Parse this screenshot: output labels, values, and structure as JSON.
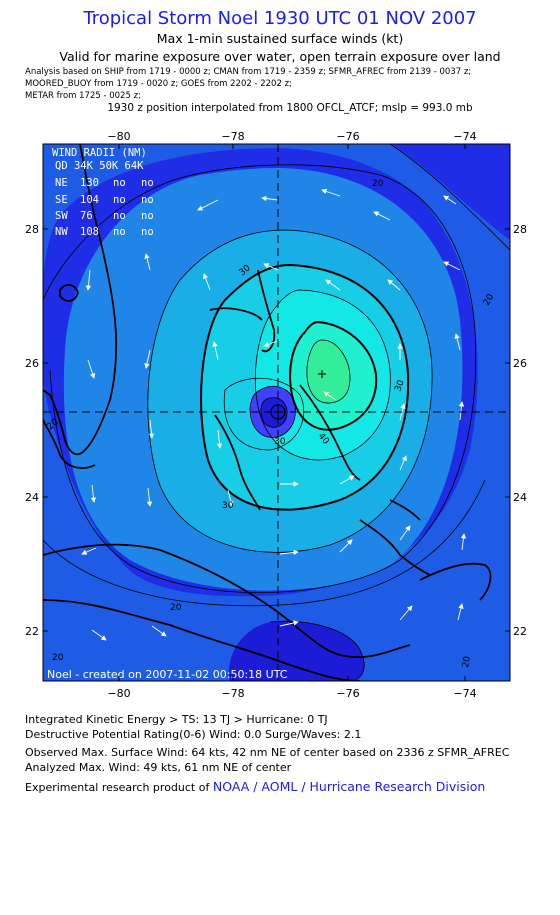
{
  "header": {
    "title": "Tropical Storm Noel 1930 UTC 01 NOV 2007",
    "subtitle1": "Max 1-min sustained surface winds (kt)",
    "subtitle2": "Valid for marine exposure over water, open terrain exposure over land",
    "sources": [
      "Analysis based on  SHIP from 1719 - 0000 z;  CMAN from 1719 - 2359 z;  SFMR_AFREC from 2139 - 0037 z;",
      "MOORED_BUOY from 1719 - 0020 z;  GOES from 2202 - 2202 z;",
      "METAR from 1725 - 0025 z;"
    ],
    "interpolation": "1930 z position interpolated from 1800 OFCL_ATCF; mslp = 993.0 mb"
  },
  "map": {
    "lon_ticks": [
      "−80",
      "−78",
      "−76",
      "−74"
    ],
    "lat_ticks": [
      "28",
      "26",
      "24",
      "22"
    ],
    "lon_range": [
      -81.3,
      -73.3
    ],
    "lat_range": [
      21.3,
      29.3
    ],
    "center": {
      "lon": -77.1,
      "lat": 25.25
    },
    "max_wind": {
      "lon": -76.5,
      "lat": 25.85
    },
    "contour_labels": [
      "20",
      "20",
      "20",
      "20",
      "30",
      "30",
      "30",
      "30",
      "40",
      "20",
      "20"
    ],
    "wind_radii": {
      "title": "WIND RADII (NM)",
      "header": "QD  34K  50K  64K",
      "rows": [
        {
          "qd": "NE",
          "r34": "130",
          "r50": "no",
          "r64": "no"
        },
        {
          "qd": "SE",
          "r34": "104",
          "r50": "no",
          "r64": "no"
        },
        {
          "qd": "SW",
          "r34": "76",
          "r50": "no",
          "r64": "no"
        },
        {
          "qd": "NW",
          "r34": "108",
          "r50": "no",
          "r64": "no"
        }
      ]
    },
    "created": "Noel - created on 2007-11-02 00:50:18 UTC",
    "colors": {
      "outer": "#1f2de6",
      "c15": "#1f5ce6",
      "c20": "#1f86e8",
      "c25": "#19aee6",
      "c30": "#18cde6",
      "c35": "#14e8e6",
      "c40": "#1ff0d0",
      "c45": "#33ee99",
      "low": "#1c1cd6",
      "core": "#4040ff"
    }
  },
  "footer": {
    "ike": "Integrated Kinetic Energy > TS: 13 TJ   > Hurricane: 0 TJ",
    "dpr": "Destructive Potential Rating(0-6)   Wind: 0.0 Surge/Waves: 2.1",
    "obs": "Observed Max. Surface Wind: 64 kts, 42 nm NE of center based on 2336 z SFMR_AFREC",
    "ana": "Analyzed Max. Wind: 49 kts, 61 nm NE of center",
    "credit_prefix": "Experimental research product of ",
    "credit_link": "NOAA / AOML / Hurricane Research Division"
  }
}
